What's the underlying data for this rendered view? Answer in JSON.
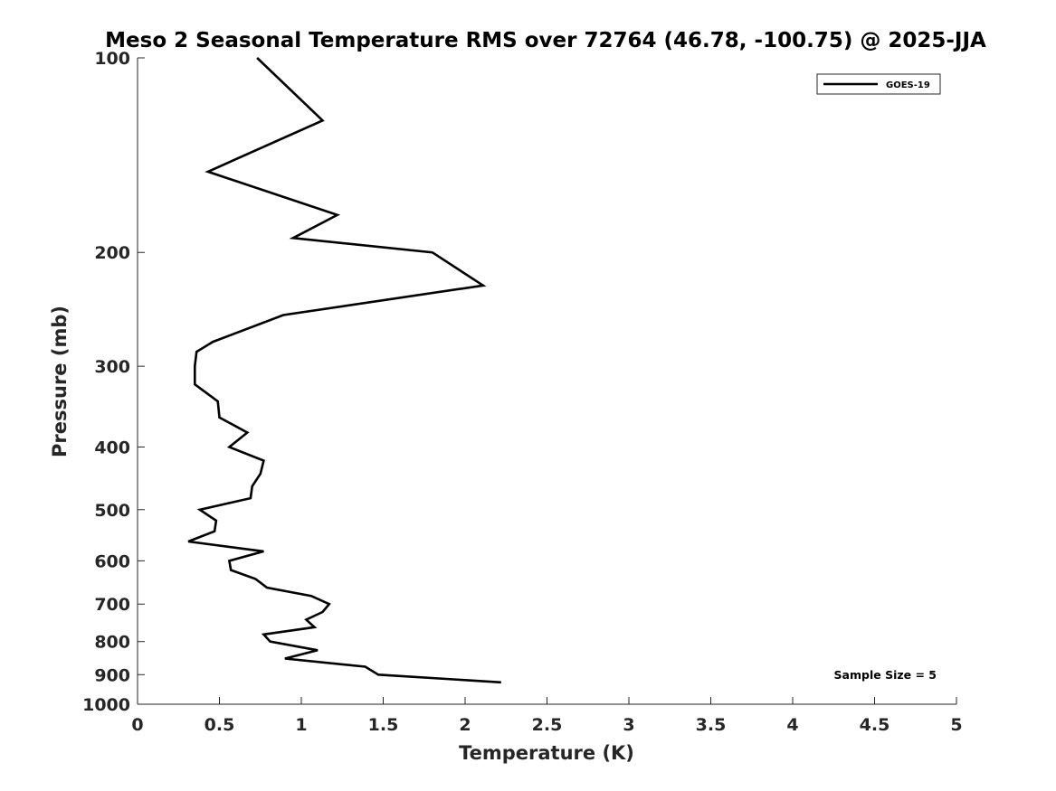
{
  "chart_data": {
    "type": "line",
    "title": "Meso 2 Seasonal Temperature RMS over 72764 (46.78, -100.75) @ 2025-JJA",
    "xlabel": "Temperature (K)",
    "ylabel": "Pressure (mb)",
    "xlim": [
      0,
      5
    ],
    "ylim": [
      100,
      1000
    ],
    "yscale": "log",
    "yreverse": true,
    "xticks": [
      "0",
      "0.5",
      "1",
      "1.5",
      "2",
      "2.5",
      "3",
      "3.5",
      "4",
      "4.5",
      "5"
    ],
    "yticks": [
      "100",
      "200",
      "300",
      "400",
      "500",
      "600",
      "700",
      "800",
      "900",
      "1000"
    ],
    "legend": {
      "position": "top-right",
      "entries": [
        "GOES-19"
      ]
    },
    "annotation": "Sample Size = 5",
    "series": [
      {
        "name": "GOES-19",
        "color": "#000000",
        "points": [
          [
            0.73,
            100
          ],
          [
            1.13,
            125
          ],
          [
            0.43,
            150
          ],
          [
            1.22,
            175
          ],
          [
            0.95,
            190
          ],
          [
            1.8,
            200
          ],
          [
            2.11,
            225
          ],
          [
            0.89,
            250
          ],
          [
            0.46,
            275
          ],
          [
            0.36,
            285
          ],
          [
            0.35,
            300
          ],
          [
            0.35,
            320
          ],
          [
            0.49,
            340
          ],
          [
            0.5,
            360
          ],
          [
            0.67,
            380
          ],
          [
            0.56,
            400
          ],
          [
            0.77,
            420
          ],
          [
            0.75,
            440
          ],
          [
            0.7,
            460
          ],
          [
            0.69,
            480
          ],
          [
            0.38,
            500
          ],
          [
            0.48,
            520
          ],
          [
            0.47,
            540
          ],
          [
            0.31,
            560
          ],
          [
            0.77,
            580
          ],
          [
            0.56,
            600
          ],
          [
            0.57,
            620
          ],
          [
            0.72,
            640
          ],
          [
            0.79,
            660
          ],
          [
            1.06,
            680
          ],
          [
            1.17,
            700
          ],
          [
            1.13,
            720
          ],
          [
            1.03,
            740
          ],
          [
            1.08,
            760
          ],
          [
            0.77,
            780
          ],
          [
            0.81,
            800
          ],
          [
            1.1,
            825
          ],
          [
            0.9,
            850
          ],
          [
            1.39,
            875
          ],
          [
            1.47,
            900
          ],
          [
            2.22,
            925
          ]
        ]
      }
    ]
  }
}
